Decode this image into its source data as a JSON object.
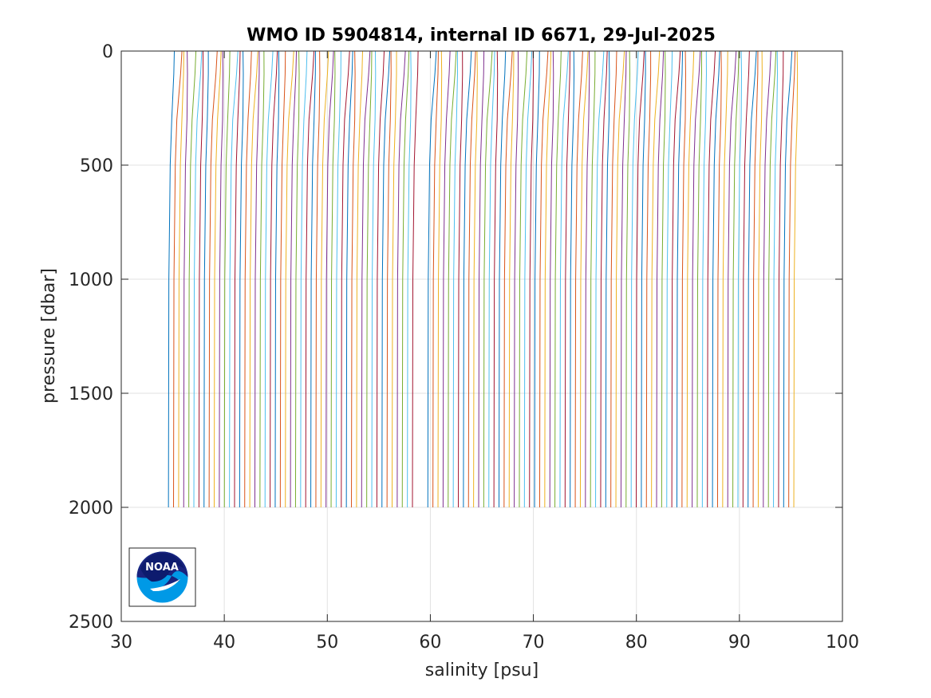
{
  "chart_data": {
    "type": "line",
    "title": "WMO ID 5904814, internal ID 6671, 29-Jul-2025",
    "xlabel": "salinity [psu]",
    "ylabel": "pressure [dbar]",
    "xlim": [
      30,
      100
    ],
    "ylim": [
      0,
      2500
    ],
    "y_reversed": true,
    "xticks": [
      30,
      40,
      50,
      60,
      70,
      80,
      90,
      100
    ],
    "yticks": [
      0,
      500,
      1000,
      1500,
      2000,
      2500
    ],
    "grid": true,
    "legend": "none",
    "series_colors": [
      "#0072BD",
      "#D95319",
      "#EDB120",
      "#7E2F8E",
      "#77AC30",
      "#4DBEEE",
      "#A2142F"
    ],
    "profile_shape": {
      "pressure": [
        0,
        100,
        200,
        300,
        500,
        700,
        1000,
        1500,
        2000
      ],
      "salinity_offset": [
        0.45,
        0.4,
        0.3,
        0.2,
        0.05,
        0.0,
        -0.08,
        -0.1,
        -0.12
      ]
    },
    "profile_offset_step": 0.5,
    "series_summary": {
      "count": 122,
      "first_profile_deep_salinity": 34.7,
      "last_profile_deep_salinity": 95.4,
      "max_pressure": 2000
    },
    "gap_between_profiles": [
      58.5,
      59.5
    ],
    "logo": "noaa-logo"
  }
}
